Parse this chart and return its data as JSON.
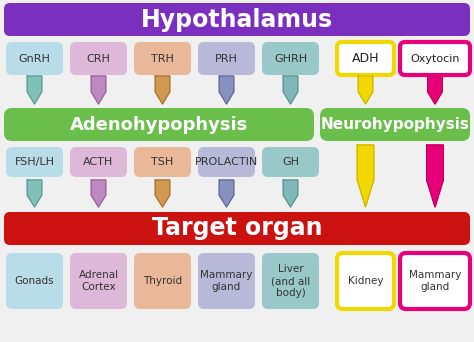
{
  "title": "Hypothalamus",
  "title_bg": "#7b2fbe",
  "adenohypophysis_label": "Adenohypophysis",
  "neurohypophysis_label": "Neurohypophysis",
  "gland_bg": "#6abf4b",
  "target_label": "Target organ",
  "target_bg": "#cc1111",
  "row1_hormones": [
    "GnRH",
    "CRH",
    "TRH",
    "PRH",
    "GHRH"
  ],
  "row1_colors": [
    "#b8dce8",
    "#ddb8d8",
    "#e8b898",
    "#b8b8d8",
    "#98c8c8"
  ],
  "adh_label": "ADH",
  "adh_border": "#f0d800",
  "adh_bg": "#ffffff",
  "oxytocin_label": "Oxytocin",
  "oxytocin_border": "#e8007a",
  "oxytocin_bg": "#ffffff",
  "row2_hormones": [
    "FSH/LH",
    "ACTH",
    "TSH",
    "PROLACTIN",
    "GH"
  ],
  "row2_colors": [
    "#b8dce8",
    "#ddb8d8",
    "#e8b898",
    "#b8b8d8",
    "#98c8c8"
  ],
  "arrow_colors": [
    "#80c0b8",
    "#c088c0",
    "#d09850",
    "#8890c0",
    "#80b8b8"
  ],
  "arrow_color_adh": "#f0d800",
  "arrow_color_oxytocin": "#e8007a",
  "target_hormones": [
    "Gonads",
    "Adrenal\nCortex",
    "Thyroid",
    "Mammary\ngland",
    "Liver\n(and all\nbody)",
    "Kidney",
    "Mammary\ngland"
  ],
  "target_colors": [
    "#b8dce8",
    "#ddb8d8",
    "#e8b898",
    "#b8b8d8",
    "#98c8c8",
    "#ffffff",
    "#ffffff"
  ],
  "target_borders_lw": [
    0,
    0,
    0,
    0,
    0,
    3,
    3
  ],
  "target_border_colors": [
    "#b8dce8",
    "#ddb8d8",
    "#e8b898",
    "#b8b8d8",
    "#98c8c8",
    "#f0d800",
    "#e8007a"
  ],
  "bg_color": "#f0f0f0"
}
